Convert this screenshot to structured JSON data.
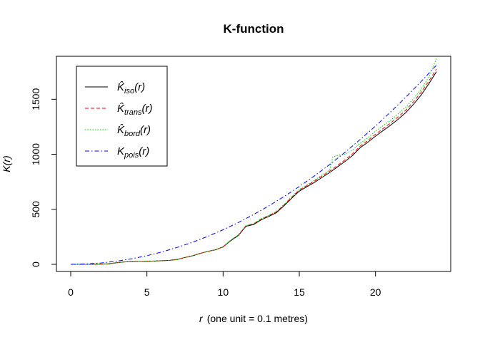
{
  "chart_data": {
    "type": "line",
    "title": "K-function",
    "xlabel": {
      "symbol": "r",
      "text": "(one unit = 0.1 metres)"
    },
    "ylabel": {
      "symbol": "K",
      "argument": "(r)"
    },
    "xlim": [
      0,
      24
    ],
    "ylim": [
      0,
      1800
    ],
    "x_ticks": [
      0,
      5,
      10,
      15,
      20
    ],
    "y_ticks": [
      0,
      500,
      1000,
      1500
    ],
    "grid": false,
    "legend_position": "top-left",
    "series": [
      {
        "name": "K̂_iso(r)",
        "label_main": "K̂",
        "label_sub": "iso",
        "label_arg": "(r)",
        "color": "#000000",
        "linestyle": "solid",
        "points": [
          [
            0,
            0
          ],
          [
            1,
            0
          ],
          [
            2,
            2
          ],
          [
            2.5,
            5
          ],
          [
            3,
            15
          ],
          [
            3.5,
            22
          ],
          [
            4,
            24
          ],
          [
            4.5,
            26
          ],
          [
            5,
            27
          ],
          [
            5.5,
            30
          ],
          [
            6,
            33
          ],
          [
            6.5,
            36
          ],
          [
            7,
            45
          ],
          [
            7.5,
            62
          ],
          [
            8,
            78
          ],
          [
            8.5,
            100
          ],
          [
            9,
            118
          ],
          [
            9.5,
            132
          ],
          [
            10,
            158
          ],
          [
            10.5,
            215
          ],
          [
            11,
            262
          ],
          [
            11.5,
            345
          ],
          [
            12,
            362
          ],
          [
            12.5,
            405
          ],
          [
            13,
            435
          ],
          [
            13.5,
            470
          ],
          [
            14,
            532
          ],
          [
            14.5,
            600
          ],
          [
            15,
            665
          ],
          [
            15.5,
            705
          ],
          [
            16,
            745
          ],
          [
            16.5,
            790
          ],
          [
            17,
            835
          ],
          [
            17.5,
            885
          ],
          [
            18,
            935
          ],
          [
            18.5,
            990
          ],
          [
            19,
            1060
          ],
          [
            19.5,
            1110
          ],
          [
            20,
            1165
          ],
          [
            20.5,
            1215
          ],
          [
            21,
            1265
          ],
          [
            21.5,
            1320
          ],
          [
            22,
            1380
          ],
          [
            22.5,
            1455
          ],
          [
            23,
            1540
          ],
          [
            23.5,
            1640
          ],
          [
            24,
            1750
          ]
        ]
      },
      {
        "name": "K̂_trans(r)",
        "label_main": "K̂",
        "label_sub": "trans",
        "label_arg": "(r)",
        "color": "#ff0000",
        "linestyle": "dashed",
        "points": [
          [
            0,
            0
          ],
          [
            1,
            0
          ],
          [
            2,
            2
          ],
          [
            2.5,
            5
          ],
          [
            3,
            15
          ],
          [
            3.5,
            22
          ],
          [
            4,
            24
          ],
          [
            4.5,
            26
          ],
          [
            5,
            27
          ],
          [
            5.5,
            30
          ],
          [
            6,
            33
          ],
          [
            6.5,
            36
          ],
          [
            7,
            45
          ],
          [
            7.5,
            62
          ],
          [
            8,
            78
          ],
          [
            8.5,
            100
          ],
          [
            9,
            118
          ],
          [
            9.5,
            132
          ],
          [
            10,
            160
          ],
          [
            10.5,
            218
          ],
          [
            11,
            266
          ],
          [
            11.5,
            350
          ],
          [
            12,
            368
          ],
          [
            12.5,
            412
          ],
          [
            13,
            442
          ],
          [
            13.5,
            478
          ],
          [
            14,
            540
          ],
          [
            14.5,
            610
          ],
          [
            15,
            675
          ],
          [
            15.5,
            715
          ],
          [
            16,
            757
          ],
          [
            16.5,
            802
          ],
          [
            17,
            848
          ],
          [
            17.5,
            898
          ],
          [
            18,
            950
          ],
          [
            18.5,
            1005
          ],
          [
            19,
            1075
          ],
          [
            19.5,
            1126
          ],
          [
            20,
            1182
          ],
          [
            20.5,
            1234
          ],
          [
            21,
            1285
          ],
          [
            21.5,
            1342
          ],
          [
            22,
            1402
          ],
          [
            22.5,
            1478
          ],
          [
            23,
            1565
          ],
          [
            23.5,
            1665
          ],
          [
            24,
            1775
          ]
        ]
      },
      {
        "name": "K̂_bord(r)",
        "label_main": "K̂",
        "label_sub": "bord",
        "label_arg": "(r)",
        "color": "#00cc00",
        "linestyle": "dotted",
        "points": [
          [
            0,
            0
          ],
          [
            1,
            0
          ],
          [
            2,
            2
          ],
          [
            2.5,
            5
          ],
          [
            3,
            15
          ],
          [
            3.5,
            22
          ],
          [
            4,
            24
          ],
          [
            4.5,
            26
          ],
          [
            5,
            27
          ],
          [
            5.5,
            30
          ],
          [
            6,
            33
          ],
          [
            6.5,
            36
          ],
          [
            7,
            45
          ],
          [
            7.5,
            62
          ],
          [
            8,
            78
          ],
          [
            8.5,
            100
          ],
          [
            9,
            118
          ],
          [
            9.5,
            132
          ],
          [
            10,
            160
          ],
          [
            10.5,
            220
          ],
          [
            11,
            268
          ],
          [
            11.5,
            352
          ],
          [
            12,
            370
          ],
          [
            12.5,
            415
          ],
          [
            13,
            446
          ],
          [
            13.5,
            482
          ],
          [
            14,
            545
          ],
          [
            14.5,
            615
          ],
          [
            15,
            680
          ],
          [
            15.5,
            722
          ],
          [
            16,
            765
          ],
          [
            16.5,
            812
          ],
          [
            17,
            860
          ],
          [
            17.2,
            975
          ],
          [
            17.5,
            990
          ],
          [
            18,
            1000
          ],
          [
            18.5,
            1040
          ],
          [
            19,
            1100
          ],
          [
            19.5,
            1150
          ],
          [
            20,
            1210
          ],
          [
            20.5,
            1260
          ],
          [
            21,
            1310
          ],
          [
            21.5,
            1370
          ],
          [
            22,
            1430
          ],
          [
            22.5,
            1505
          ],
          [
            23,
            1595
          ],
          [
            23.5,
            1700
          ],
          [
            24,
            1870
          ]
        ]
      },
      {
        "name": "K_pois(r)",
        "label_main": "K",
        "label_sub": "pois",
        "label_arg": "(r)",
        "color": "#0000ff",
        "linestyle": "dashdot",
        "points": [
          [
            0,
            0
          ],
          [
            1,
            3.14
          ],
          [
            2,
            12.57
          ],
          [
            3,
            28.27
          ],
          [
            4,
            50.27
          ],
          [
            5,
            78.54
          ],
          [
            6,
            113.1
          ],
          [
            7,
            153.94
          ],
          [
            8,
            201.06
          ],
          [
            9,
            254.47
          ],
          [
            10,
            314.16
          ],
          [
            11,
            380.13
          ],
          [
            12,
            452.39
          ],
          [
            13,
            530.93
          ],
          [
            14,
            615.75
          ],
          [
            15,
            706.86
          ],
          [
            16,
            804.25
          ],
          [
            17,
            907.92
          ],
          [
            18,
            1017.88
          ],
          [
            19,
            1134.11
          ],
          [
            20,
            1256.64
          ],
          [
            21,
            1385.44
          ],
          [
            22,
            1520.53
          ],
          [
            23,
            1661.9
          ],
          [
            24,
            1809.56
          ]
        ]
      }
    ]
  }
}
